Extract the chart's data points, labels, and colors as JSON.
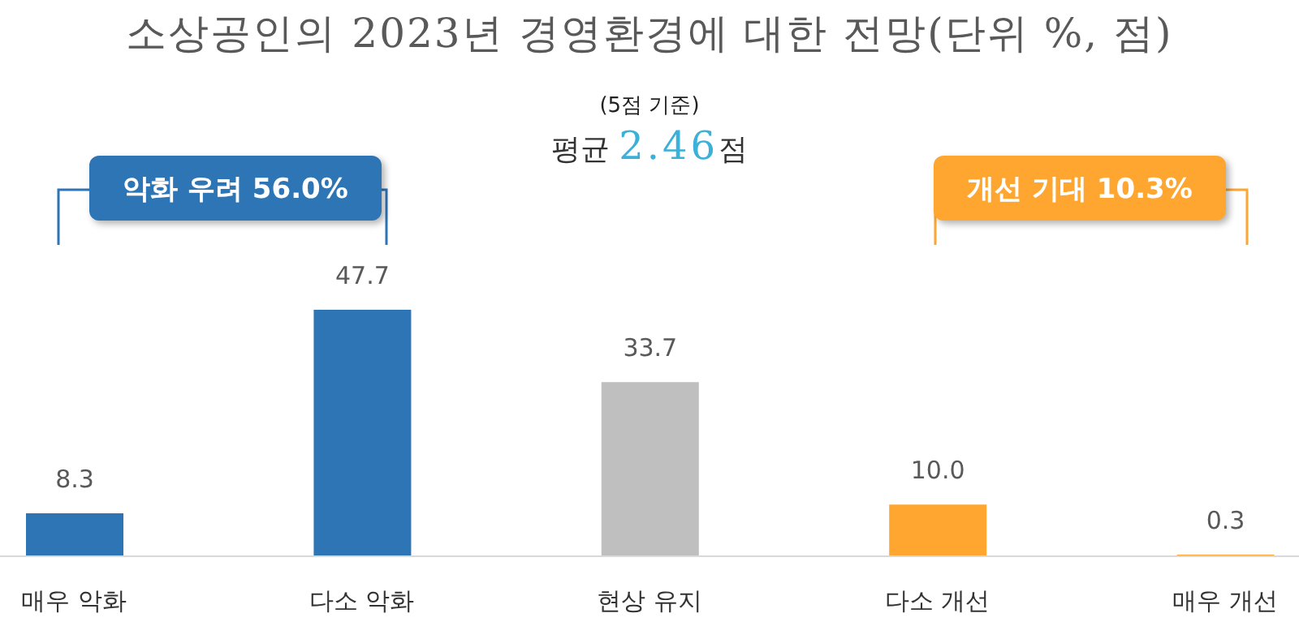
{
  "chart_data": {
    "type": "bar",
    "title": "소상공인의 2023년 경영환경에 대한 전망(단위 %, 점)",
    "categories": [
      "매우 악화",
      "다소 악화",
      "현상 유지",
      "다소 개선",
      "매우 개선"
    ],
    "values": [
      8.3,
      47.7,
      33.7,
      10.0,
      0.3
    ],
    "colors": [
      "#2e75b6",
      "#2e75b6",
      "#bfbfbf",
      "#ffa630",
      "#ffa630"
    ],
    "value_labels": [
      "8.3",
      "47.7",
      "33.7",
      "10.0",
      "0.3"
    ],
    "annotations": [
      "(5점 기준)",
      "평균 2.46점",
      "악화 우려 56.0%",
      "개선 기대 10.3%"
    ]
  }
}
